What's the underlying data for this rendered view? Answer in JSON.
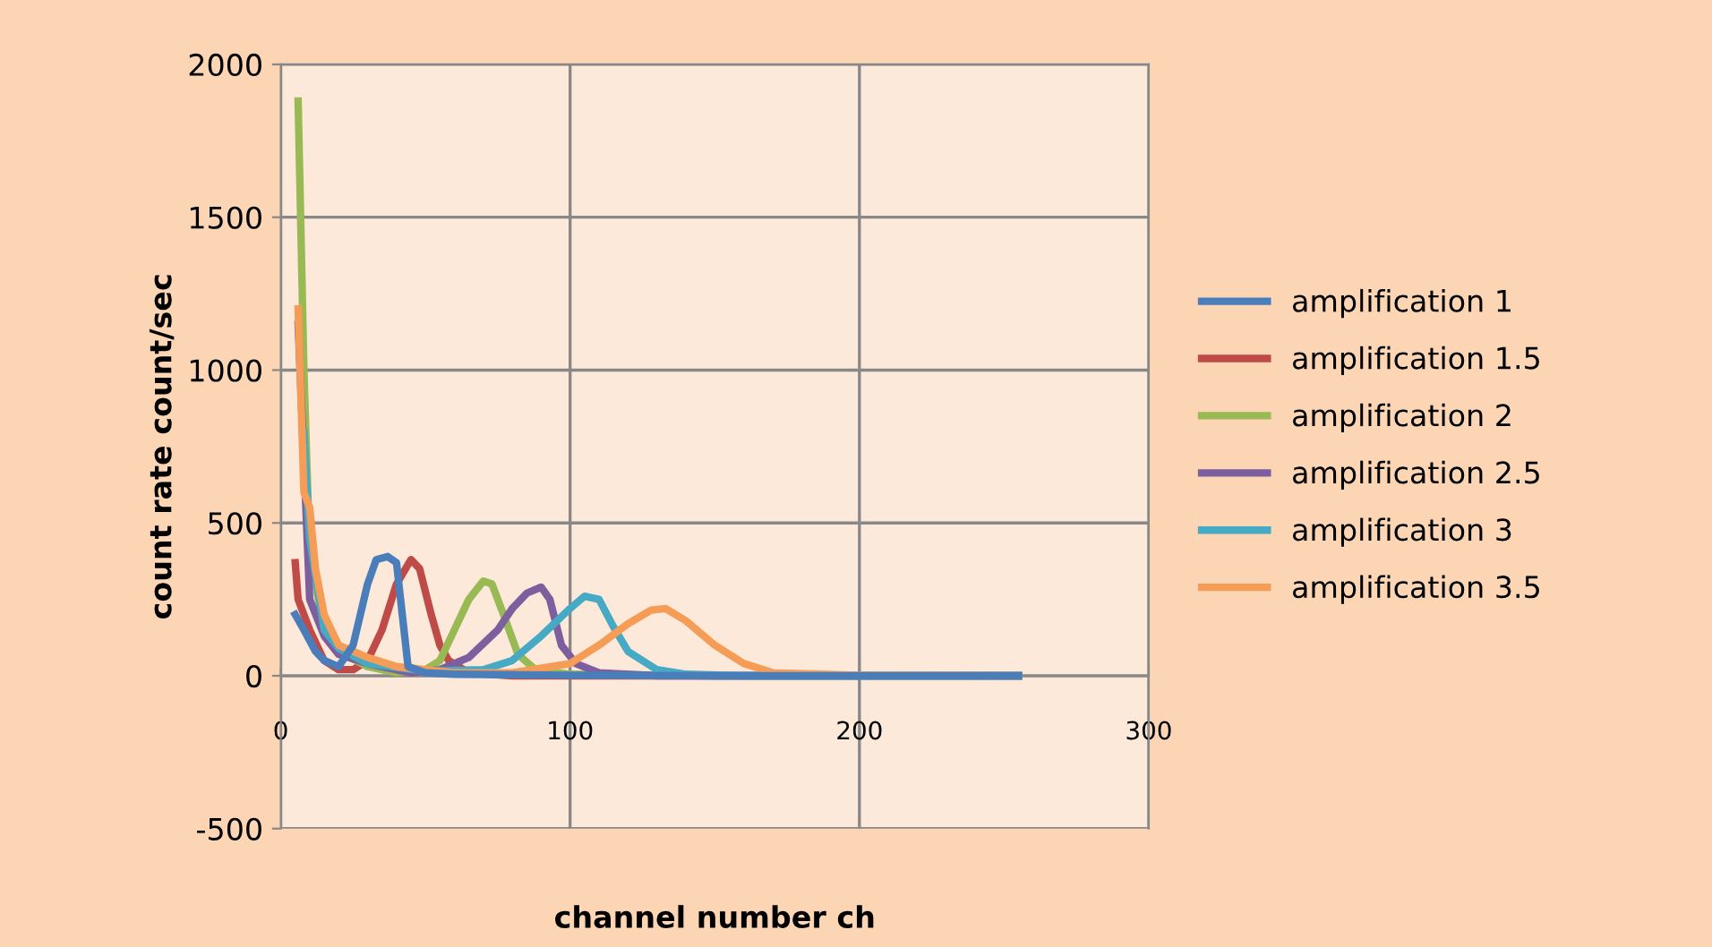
{
  "chart_data": {
    "type": "line",
    "xlabel": "channel number ch",
    "ylabel": "count rate count/sec",
    "xlim": [
      0,
      300
    ],
    "xticks": [
      0,
      100,
      200,
      300
    ],
    "ylim": [
      -500,
      2000
    ],
    "yticks": [
      -500,
      0,
      500,
      1000,
      1500,
      2000
    ],
    "grid": true,
    "legend": "right",
    "marker": "none",
    "line_style": "solid",
    "series": [
      {
        "name": "amplification 1",
        "color": "#4a7ebb",
        "x": [
          5,
          8,
          12,
          15,
          20,
          25,
          30,
          33,
          37,
          40,
          42,
          44,
          50,
          60,
          100,
          150,
          200,
          255
        ],
        "values": [
          200,
          150,
          80,
          50,
          30,
          100,
          300,
          380,
          390,
          370,
          200,
          30,
          10,
          5,
          2,
          0,
          0,
          0
        ]
      },
      {
        "name": "amplification 1.5",
        "color": "#be4b48",
        "x": [
          5,
          6,
          10,
          15,
          20,
          25,
          30,
          35,
          40,
          45,
          48,
          52,
          55,
          58,
          65,
          80,
          150,
          255
        ],
        "values": [
          370,
          250,
          150,
          50,
          20,
          20,
          50,
          150,
          300,
          380,
          350,
          200,
          100,
          50,
          10,
          0,
          0,
          0
        ]
      },
      {
        "name": "amplification 2",
        "color": "#98b954",
        "x": [
          6,
          8,
          10,
          15,
          20,
          30,
          40,
          50,
          55,
          60,
          65,
          70,
          73,
          77,
          82,
          88,
          100,
          150,
          255
        ],
        "values": [
          1880,
          1000,
          400,
          150,
          80,
          30,
          10,
          20,
          50,
          150,
          250,
          310,
          300,
          200,
          70,
          20,
          5,
          0,
          0
        ]
      },
      {
        "name": "amplification 2.5",
        "color": "#7d5fa0",
        "x": [
          6,
          8,
          10,
          15,
          20,
          30,
          45,
          55,
          65,
          75,
          80,
          85,
          90,
          93,
          97,
          102,
          110,
          130,
          255
        ],
        "values": [
          1150,
          700,
          250,
          130,
          70,
          40,
          10,
          20,
          60,
          150,
          220,
          270,
          290,
          250,
          100,
          40,
          10,
          0,
          0
        ]
      },
      {
        "name": "amplification 3",
        "color": "#46aac5",
        "x": [
          8,
          10,
          15,
          20,
          30,
          50,
          70,
          80,
          90,
          100,
          105,
          110,
          115,
          120,
          130,
          140,
          160,
          255
        ],
        "values": [
          800,
          450,
          150,
          90,
          40,
          15,
          20,
          50,
          130,
          220,
          260,
          250,
          160,
          80,
          20,
          5,
          0,
          0
        ]
      },
      {
        "name": "amplification 3.5",
        "color": "#f59d56",
        "x": [
          6,
          8,
          10,
          12,
          15,
          20,
          25,
          30,
          40,
          60,
          80,
          100,
          110,
          120,
          128,
          133,
          140,
          150,
          160,
          170,
          200,
          255
        ],
        "values": [
          1200,
          600,
          550,
          350,
          200,
          100,
          80,
          60,
          30,
          10,
          10,
          40,
          100,
          170,
          215,
          220,
          180,
          100,
          40,
          10,
          2,
          0
        ]
      }
    ]
  }
}
